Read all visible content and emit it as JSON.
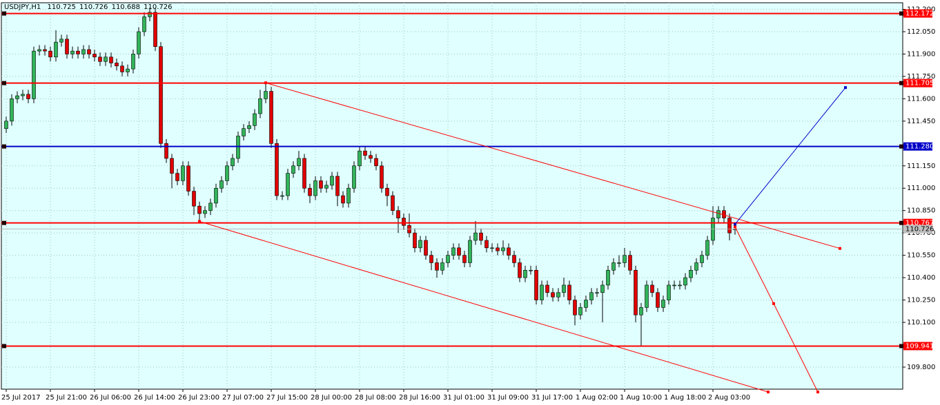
{
  "chart_data": {
    "type": "candlestick",
    "title": "USDJPY,H1",
    "categories": [
      "25 Jul 2017",
      null,
      null,
      null,
      null,
      null,
      null,
      null,
      "25 Jul 21:00",
      null,
      null,
      null,
      null,
      null,
      null,
      null,
      "26 Jul 06:00",
      null,
      null,
      null,
      null,
      null,
      null,
      null,
      "26 Jul 14:00",
      null,
      null,
      null,
      null,
      null,
      null,
      null,
      "26 Jul 23:00",
      null,
      null,
      null,
      null,
      null,
      null,
      null,
      "27 Jul 07:00",
      null,
      null,
      null,
      null,
      null,
      null,
      null,
      "27 Jul 15:00",
      null,
      null,
      null,
      null,
      null,
      null,
      null,
      "28 Jul 00:00",
      null,
      null,
      null,
      null,
      null,
      null,
      null,
      "28 Jul 08:00",
      null,
      null,
      null,
      null,
      null,
      null,
      null,
      "28 Jul 16:00",
      null,
      null,
      null,
      null,
      null,
      null,
      null,
      "31 Jul 01:00",
      null,
      null,
      null,
      null,
      null,
      null,
      null,
      "31 Jul 09:00",
      null,
      null,
      null,
      null,
      null,
      null,
      null,
      "31 Jul 17:00",
      null,
      null,
      null,
      null,
      null,
      null,
      null,
      "1 Aug 02:00",
      null,
      null,
      null,
      null,
      null,
      null,
      null,
      "1 Aug 10:00",
      null,
      null,
      null,
      null,
      null,
      null,
      null,
      "1 Aug 18:00",
      null,
      null,
      null,
      null,
      null,
      null,
      null,
      "2 Aug 03:00",
      null,
      null,
      null,
      null
    ],
    "open": [
      111.4,
      111.45,
      111.6,
      111.62,
      111.63,
      111.6,
      111.92,
      111.93,
      111.92,
      111.88,
      111.98,
      112.0,
      111.9,
      111.92,
      111.9,
      111.93,
      111.9,
      111.88,
      111.85,
      111.88,
      111.84,
      111.82,
      111.78,
      111.8,
      111.9,
      112.05,
      112.15,
      112.18,
      111.95,
      111.3,
      111.2,
      111.1,
      111.05,
      111.15,
      110.98,
      110.88,
      110.83,
      110.85,
      110.9,
      111.0,
      111.05,
      111.15,
      111.2,
      111.35,
      111.4,
      111.42,
      111.5,
      111.6,
      111.65,
      111.3,
      110.95,
      110.95,
      111.1,
      111.15,
      111.2,
      111.0,
      110.95,
      111.05,
      111.0,
      111.02,
      111.08,
      110.95,
      110.9,
      111.0,
      111.15,
      111.25,
      111.22,
      111.2,
      111.15,
      111.0,
      110.95,
      110.85,
      110.8,
      110.75,
      110.7,
      110.6,
      110.65,
      110.55,
      110.5,
      110.45,
      110.5,
      110.55,
      110.6,
      110.55,
      110.5,
      110.65,
      110.7,
      110.65,
      110.6,
      110.6,
      110.58,
      110.6,
      110.55,
      110.5,
      110.4,
      110.45,
      110.45,
      110.25,
      110.35,
      110.3,
      110.27,
      110.3,
      110.35,
      110.25,
      110.15,
      110.2,
      110.25,
      110.3,
      110.3,
      110.35,
      110.45,
      110.5,
      110.5,
      110.55,
      110.45,
      110.15,
      110.2,
      110.35,
      110.3,
      110.2,
      110.25,
      110.35,
      110.35,
      110.35,
      110.4,
      110.45,
      110.5,
      110.55,
      110.65,
      110.8,
      110.85,
      110.8,
      110.725
    ],
    "high": [
      111.48,
      111.63,
      111.65,
      111.66,
      111.66,
      111.95,
      111.96,
      111.96,
      111.95,
      112.06,
      112.03,
      112.03,
      111.95,
      111.95,
      111.96,
      111.96,
      111.93,
      111.91,
      111.91,
      111.91,
      111.87,
      111.85,
      111.83,
      111.93,
      112.08,
      112.18,
      112.21,
      112.21,
      111.98,
      111.33,
      111.23,
      111.13,
      111.18,
      111.18,
      111.01,
      110.91,
      110.88,
      110.93,
      111.03,
      111.08,
      111.18,
      111.23,
      111.38,
      111.43,
      111.45,
      111.53,
      111.66,
      111.705,
      111.68,
      111.33,
      110.98,
      111.13,
      111.18,
      111.25,
      111.23,
      111.03,
      111.08,
      111.08,
      111.05,
      111.11,
      111.11,
      110.98,
      111.03,
      111.18,
      111.28,
      111.28,
      111.25,
      111.23,
      111.18,
      111.03,
      110.98,
      110.88,
      110.83,
      110.83,
      110.73,
      110.68,
      110.68,
      110.58,
      110.53,
      110.53,
      110.58,
      110.63,
      110.63,
      110.58,
      110.68,
      110.78,
      110.73,
      110.68,
      110.63,
      110.63,
      110.65,
      110.63,
      110.58,
      110.53,
      110.48,
      110.48,
      110.48,
      110.38,
      110.38,
      110.33,
      110.33,
      110.4,
      110.38,
      110.28,
      110.23,
      110.28,
      110.33,
      110.33,
      110.38,
      110.48,
      110.53,
      110.55,
      110.6,
      110.58,
      110.48,
      110.23,
      110.38,
      110.38,
      110.33,
      110.28,
      110.38,
      110.38,
      110.38,
      110.43,
      110.48,
      110.53,
      110.58,
      110.68,
      110.88,
      110.88,
      110.88,
      110.83,
      110.726
    ],
    "low": [
      111.37,
      111.42,
      111.57,
      111.59,
      111.57,
      111.57,
      111.89,
      111.89,
      111.85,
      111.85,
      111.95,
      111.87,
      111.87,
      111.87,
      111.87,
      111.87,
      111.85,
      111.82,
      111.82,
      111.81,
      111.79,
      111.75,
      111.75,
      111.77,
      111.87,
      112.02,
      112.12,
      111.92,
      111.27,
      111.17,
      111.0,
      111.02,
      111.02,
      110.95,
      110.82,
      110.78,
      110.8,
      110.82,
      110.87,
      110.97,
      111.02,
      111.12,
      111.17,
      111.32,
      111.37,
      111.39,
      111.47,
      111.57,
      111.27,
      110.92,
      110.92,
      110.92,
      111.07,
      111.12,
      110.97,
      110.9,
      110.92,
      110.97,
      110.97,
      110.99,
      110.88,
      110.87,
      110.87,
      110.97,
      111.12,
      111.19,
      111.17,
      111.12,
      110.97,
      110.88,
      110.82,
      110.7,
      110.72,
      110.67,
      110.57,
      110.57,
      110.52,
      110.45,
      110.4,
      110.42,
      110.47,
      110.52,
      110.52,
      110.47,
      110.47,
      110.62,
      110.62,
      110.57,
      110.57,
      110.55,
      110.55,
      110.52,
      110.47,
      110.37,
      110.37,
      110.42,
      110.22,
      110.22,
      110.27,
      110.24,
      110.24,
      110.27,
      110.22,
      110.08,
      110.12,
      110.17,
      110.22,
      110.27,
      110.1,
      110.32,
      110.42,
      110.47,
      110.47,
      110.42,
      110.1,
      109.94,
      110.17,
      110.27,
      110.17,
      110.17,
      110.22,
      110.32,
      110.32,
      110.32,
      110.37,
      110.42,
      110.47,
      110.52,
      110.62,
      110.77,
      110.77,
      110.65,
      110.688
    ],
    "close": [
      111.45,
      111.6,
      111.62,
      111.63,
      111.6,
      111.92,
      111.93,
      111.92,
      111.88,
      111.98,
      112.0,
      111.9,
      111.92,
      111.9,
      111.93,
      111.9,
      111.88,
      111.85,
      111.88,
      111.84,
      111.82,
      111.78,
      111.8,
      111.9,
      112.05,
      112.15,
      112.18,
      111.95,
      111.3,
      111.2,
      111.1,
      111.05,
      111.15,
      110.98,
      110.88,
      110.83,
      110.85,
      110.9,
      111.0,
      111.05,
      111.15,
      111.2,
      111.35,
      111.4,
      111.42,
      111.5,
      111.6,
      111.65,
      111.3,
      110.95,
      110.95,
      111.1,
      111.15,
      111.2,
      111.0,
      110.95,
      111.05,
      111.0,
      111.02,
      111.08,
      110.95,
      110.9,
      111.0,
      111.15,
      111.25,
      111.22,
      111.2,
      111.15,
      111.0,
      110.95,
      110.85,
      110.8,
      110.75,
      110.7,
      110.6,
      110.65,
      110.55,
      110.5,
      110.45,
      110.5,
      110.55,
      110.6,
      110.55,
      110.5,
      110.65,
      110.7,
      110.65,
      110.6,
      110.6,
      110.58,
      110.6,
      110.55,
      110.5,
      110.4,
      110.45,
      110.45,
      110.25,
      110.35,
      110.3,
      110.27,
      110.3,
      110.35,
      110.25,
      110.15,
      110.2,
      110.25,
      110.3,
      110.3,
      110.35,
      110.45,
      110.5,
      110.5,
      110.55,
      110.45,
      110.15,
      110.2,
      110.35,
      110.3,
      110.2,
      110.25,
      110.35,
      110.35,
      110.35,
      110.4,
      110.45,
      110.5,
      110.55,
      110.65,
      110.8,
      110.85,
      110.8,
      110.7,
      110.726
    ],
    "up_color": "#32b45a",
    "down_color": "#e00000",
    "ylim": [
      109.652,
      112.244
    ],
    "yticks": [
      {
        "value": 112.2,
        "label": "112.200"
      },
      {
        "value": 112.05,
        "label": "112.050"
      },
      {
        "value": 111.9,
        "label": "111.900"
      },
      {
        "value": 111.75,
        "label": "111.750"
      },
      {
        "value": 111.6,
        "label": "111.600"
      },
      {
        "value": 111.45,
        "label": "111.450"
      },
      {
        "value": 111.15,
        "label": "111.150"
      },
      {
        "value": 111.0,
        "label": "111.000"
      },
      {
        "value": 110.85,
        "label": "110.850"
      },
      {
        "value": 110.7,
        "label": "110.700"
      },
      {
        "value": 110.55,
        "label": "110.550"
      },
      {
        "value": 110.4,
        "label": "110.400"
      },
      {
        "value": 110.25,
        "label": "110.250"
      },
      {
        "value": 110.1,
        "label": "110.100"
      },
      {
        "value": 109.8,
        "label": "109.800"
      }
    ],
    "grid": true,
    "levels": [
      {
        "value": 112.172,
        "label": "112.172",
        "color": "#ff0000"
      },
      {
        "value": 111.705,
        "label": "111.705",
        "color": "#ff0000"
      },
      {
        "value": 111.28,
        "label": "111.280",
        "color": "#0000c8"
      },
      {
        "value": 110.767,
        "label": "110.767",
        "color": "#ff0000"
      },
      {
        "value": 109.941,
        "label": "109.941",
        "color": "#ff0000"
      }
    ],
    "trendlines": [
      {
        "x": [
          47,
          151
        ],
        "y": [
          111.707,
          110.596
        ],
        "color": "#ff0000"
      },
      {
        "x": [
          35,
          138
        ],
        "y": [
          110.777,
          109.633
        ],
        "color": "#ff0000"
      },
      {
        "x": [
          132,
          152
        ],
        "y": [
          110.758,
          111.675
        ],
        "color": "#0000c8"
      },
      {
        "x": [
          132,
          139,
          147
        ],
        "y": [
          110.74,
          110.226,
          109.633
        ],
        "color": "#ff0000"
      }
    ]
  }
}
